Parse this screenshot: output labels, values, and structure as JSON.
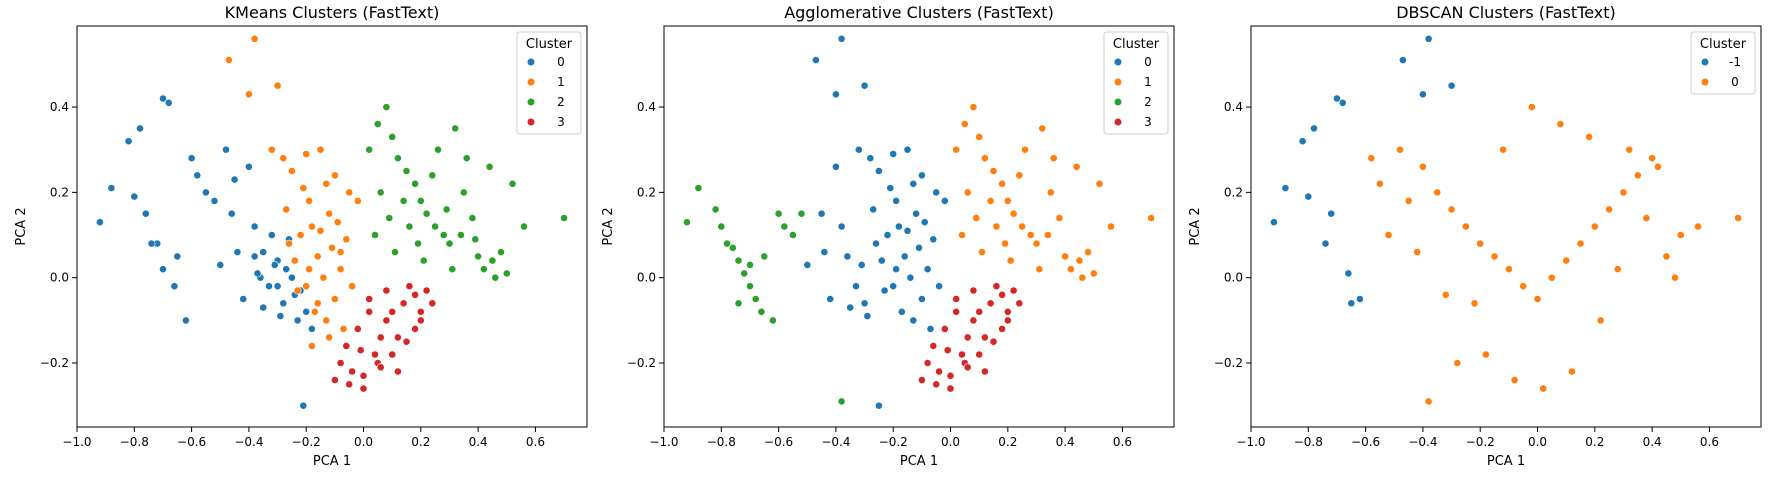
{
  "figure": {
    "background": "#ffffff"
  },
  "colors": {
    "blue": "#1f77b4",
    "orange": "#ff7f0e",
    "green": "#2ca02c",
    "red": "#d62728"
  },
  "chart_data": [
    {
      "type": "scatter",
      "title": "KMeans Clusters (FastText)",
      "xlabel": "PCA 1",
      "ylabel": "PCA 2",
      "xlim": [
        -1.0,
        0.78
      ],
      "ylim": [
        -0.35,
        0.59
      ],
      "xticks": [
        -1.0,
        -0.8,
        -0.6,
        -0.4,
        -0.2,
        0.0,
        0.2,
        0.4,
        0.6
      ],
      "xtick_labels": [
        "−1.0",
        "−0.8",
        "−0.6",
        "−0.4",
        "−0.2",
        "0.0",
        "0.2",
        "0.4",
        "0.6"
      ],
      "yticks": [
        -0.2,
        0.0,
        0.2,
        0.4
      ],
      "ytick_labels": [
        "−0.2",
        "0.0",
        "0.2",
        "0.4"
      ],
      "grid": false,
      "legend": {
        "title": "Cluster",
        "placement": "top-right",
        "entries": [
          "0",
          "1",
          "2",
          "3"
        ]
      },
      "series": [
        {
          "name": "0",
          "color": "#1f77b4",
          "x": [
            -0.92,
            -0.88,
            -0.82,
            -0.8,
            -0.78,
            -0.7,
            -0.68,
            -0.72,
            -0.65,
            -0.6,
            -0.58,
            -0.55,
            -0.52,
            -0.48,
            -0.45,
            -0.4,
            -0.38,
            -0.35,
            -0.3,
            -0.27,
            -0.25,
            -0.22,
            -0.2,
            -0.18,
            -0.32,
            -0.36,
            -0.42,
            -0.5,
            -0.62,
            -0.66,
            -0.7,
            -0.74,
            -0.76,
            -0.46,
            -0.28,
            -0.33,
            -0.38,
            -0.24,
            -0.21,
            -0.3,
            -0.26,
            -0.35,
            -0.44,
            -0.31,
            -0.23,
            -0.29,
            -0.37
          ],
          "y": [
            0.13,
            0.21,
            0.32,
            0.19,
            0.35,
            0.42,
            0.41,
            0.08,
            0.05,
            0.28,
            0.24,
            0.2,
            0.18,
            0.3,
            0.23,
            0.26,
            0.12,
            0.06,
            0.04,
            0.02,
            0.0,
            -0.03,
            -0.08,
            -0.12,
            0.1,
            0.0,
            -0.05,
            0.03,
            -0.1,
            -0.02,
            0.02,
            0.08,
            0.15,
            0.15,
            -0.06,
            -0.02,
            0.05,
            -0.04,
            -0.3,
            -0.02,
            0.09,
            -0.07,
            0.06,
            0.03,
            -0.1,
            -0.09,
            0.01
          ]
        },
        {
          "name": "1",
          "color": "#ff7f0e",
          "x": [
            -0.47,
            -0.38,
            -0.4,
            -0.3,
            -0.32,
            -0.28,
            -0.25,
            -0.2,
            -0.15,
            -0.1,
            -0.05,
            -0.02,
            -0.12,
            -0.18,
            -0.22,
            -0.26,
            -0.16,
            -0.08,
            -0.14,
            -0.2,
            -0.24,
            -0.1,
            -0.06,
            -0.17,
            -0.13,
            -0.19,
            -0.09,
            -0.04,
            -0.21,
            -0.27,
            -0.11,
            -0.15,
            -0.07,
            -0.23,
            -0.19,
            -0.13,
            -0.16,
            -0.12,
            -0.18,
            -0.08
          ],
          "y": [
            0.51,
            0.56,
            0.43,
            0.45,
            0.3,
            0.28,
            0.25,
            0.29,
            0.3,
            0.24,
            0.2,
            0.18,
            0.15,
            0.12,
            0.1,
            0.08,
            0.05,
            0.02,
            0.0,
            -0.02,
            0.04,
            -0.05,
            0.09,
            -0.08,
            -0.1,
            0.18,
            0.13,
            -0.02,
            0.21,
            0.16,
            0.07,
            0.11,
            -0.12,
            -0.03,
            0.02,
            0.22,
            -0.06,
            -0.14,
            -0.16,
            0.06
          ]
        },
        {
          "name": "2",
          "color": "#2ca02c",
          "x": [
            0.02,
            0.05,
            0.08,
            0.1,
            0.12,
            0.15,
            0.18,
            0.2,
            0.22,
            0.25,
            0.28,
            0.3,
            0.32,
            0.35,
            0.38,
            0.4,
            0.42,
            0.45,
            0.48,
            0.5,
            0.52,
            0.7,
            0.56,
            0.44,
            0.36,
            0.26,
            0.16,
            0.06,
            0.11,
            0.21,
            0.31,
            0.14,
            0.24,
            0.34,
            0.46,
            0.04,
            0.09,
            0.19,
            0.29,
            0.39
          ],
          "y": [
            0.3,
            0.36,
            0.4,
            0.33,
            0.28,
            0.25,
            0.22,
            0.18,
            0.15,
            0.12,
            0.1,
            0.08,
            0.35,
            0.2,
            0.14,
            0.05,
            0.02,
            0.04,
            0.06,
            0.01,
            0.22,
            0.14,
            0.12,
            0.26,
            0.28,
            0.3,
            0.12,
            0.2,
            0.06,
            0.04,
            0.02,
            0.18,
            0.24,
            0.1,
            0.0,
            0.1,
            0.14,
            0.08,
            0.16,
            0.09
          ]
        },
        {
          "name": "3",
          "color": "#d62728",
          "x": [
            -0.1,
            -0.05,
            0.0,
            0.05,
            0.1,
            0.15,
            0.18,
            0.2,
            0.22,
            0.12,
            0.08,
            0.02,
            -0.02,
            -0.06,
            0.14,
            0.16,
            0.06,
            -0.08,
            0.1,
            0.04,
            0.0,
            -0.04,
            0.12,
            0.18,
            0.24,
            0.2,
            0.08,
            0.02,
            -0.01,
            0.06
          ],
          "y": [
            -0.24,
            -0.25,
            -0.23,
            -0.2,
            -0.18,
            -0.15,
            -0.12,
            -0.08,
            -0.03,
            -0.22,
            -0.1,
            -0.05,
            -0.12,
            -0.16,
            -0.06,
            -0.02,
            -0.14,
            -0.2,
            -0.08,
            -0.18,
            -0.26,
            -0.22,
            -0.14,
            -0.04,
            -0.06,
            -0.1,
            -0.03,
            -0.08,
            -0.17,
            -0.21
          ]
        }
      ]
    },
    {
      "type": "scatter",
      "title": "Agglomerative Clusters (FastText)",
      "xlabel": "PCA 1",
      "ylabel": "PCA 2",
      "xlim": [
        -1.0,
        0.78
      ],
      "ylim": [
        -0.35,
        0.59
      ],
      "xticks": [
        -1.0,
        -0.8,
        -0.6,
        -0.4,
        -0.2,
        0.0,
        0.2,
        0.4,
        0.6
      ],
      "xtick_labels": [
        "−1.0",
        "−0.8",
        "−0.6",
        "−0.4",
        "−0.2",
        "0.0",
        "0.2",
        "0.4",
        "0.6"
      ],
      "yticks": [
        -0.2,
        0.0,
        0.2,
        0.4
      ],
      "ytick_labels": [
        "−0.2",
        "0.0",
        "0.2",
        "0.4"
      ],
      "grid": false,
      "legend": {
        "title": "Cluster",
        "placement": "top-right",
        "entries": [
          "0",
          "1",
          "2",
          "3"
        ]
      },
      "series": [
        {
          "name": "0",
          "color": "#1f77b4",
          "x": [
            -0.47,
            -0.38,
            -0.4,
            -0.3,
            -0.32,
            -0.28,
            -0.25,
            -0.2,
            -0.15,
            -0.1,
            -0.05,
            -0.02,
            -0.12,
            -0.18,
            -0.22,
            -0.26,
            -0.16,
            -0.08,
            -0.14,
            -0.2,
            -0.24,
            -0.1,
            -0.06,
            -0.17,
            -0.13,
            -0.19,
            -0.09,
            -0.04,
            -0.21,
            -0.27,
            -0.11,
            -0.15,
            -0.07,
            -0.23,
            -0.19,
            -0.13,
            -0.44,
            -0.36,
            -0.33,
            -0.31,
            -0.29,
            -0.35,
            -0.42,
            -0.5,
            -0.38,
            -0.45,
            -0.4,
            -0.3,
            -0.25
          ],
          "y": [
            0.51,
            0.56,
            0.43,
            0.45,
            0.3,
            0.28,
            0.25,
            0.29,
            0.3,
            0.24,
            0.2,
            0.18,
            0.15,
            0.12,
            0.1,
            0.08,
            0.05,
            0.02,
            0.0,
            -0.02,
            0.04,
            -0.05,
            0.09,
            -0.08,
            -0.1,
            0.18,
            0.13,
            -0.02,
            0.21,
            0.16,
            0.07,
            0.11,
            -0.12,
            -0.03,
            0.02,
            0.22,
            0.06,
            0.05,
            -0.02,
            0.03,
            -0.09,
            -0.07,
            -0.05,
            0.03,
            0.12,
            0.15,
            0.26,
            -0.06,
            -0.3
          ]
        },
        {
          "name": "1",
          "color": "#ff7f0e",
          "x": [
            0.02,
            0.05,
            0.08,
            0.1,
            0.12,
            0.15,
            0.18,
            0.2,
            0.22,
            0.25,
            0.28,
            0.3,
            0.32,
            0.35,
            0.38,
            0.4,
            0.42,
            0.45,
            0.48,
            0.5,
            0.52,
            0.7,
            0.56,
            0.44,
            0.36,
            0.26,
            0.16,
            0.06,
            0.11,
            0.21,
            0.31,
            0.14,
            0.24,
            0.34,
            0.46,
            0.04,
            0.09,
            0.19
          ],
          "y": [
            0.3,
            0.36,
            0.4,
            0.33,
            0.28,
            0.25,
            0.22,
            0.18,
            0.15,
            0.12,
            0.1,
            0.08,
            0.35,
            0.2,
            0.14,
            0.05,
            0.02,
            0.04,
            0.06,
            0.01,
            0.22,
            0.14,
            0.12,
            0.26,
            0.28,
            0.3,
            0.12,
            0.2,
            0.06,
            0.04,
            0.02,
            0.18,
            0.24,
            0.1,
            0.0,
            0.1,
            0.14,
            0.08
          ]
        },
        {
          "name": "2",
          "color": "#2ca02c",
          "x": [
            -0.92,
            -0.88,
            -0.82,
            -0.8,
            -0.78,
            -0.76,
            -0.74,
            -0.72,
            -0.7,
            -0.68,
            -0.66,
            -0.65,
            -0.62,
            -0.6,
            -0.58,
            -0.55,
            -0.52,
            -0.38,
            -0.7,
            -0.74
          ],
          "y": [
            0.13,
            0.21,
            0.16,
            0.12,
            0.08,
            0.07,
            0.04,
            0.01,
            -0.02,
            -0.05,
            -0.08,
            0.05,
            -0.1,
            0.15,
            0.12,
            0.1,
            0.15,
            -0.29,
            0.03,
            -0.06
          ]
        },
        {
          "name": "3",
          "color": "#d62728",
          "x": [
            -0.1,
            -0.05,
            0.0,
            0.05,
            0.1,
            0.15,
            0.18,
            0.2,
            0.22,
            0.12,
            0.08,
            0.02,
            -0.02,
            -0.06,
            0.14,
            0.16,
            0.06,
            -0.08,
            0.1,
            0.04,
            0.0,
            -0.04,
            0.12,
            0.18,
            0.24,
            0.2,
            0.08,
            0.02,
            -0.01,
            0.06
          ],
          "y": [
            -0.24,
            -0.25,
            -0.23,
            -0.2,
            -0.18,
            -0.15,
            -0.12,
            -0.08,
            -0.03,
            -0.22,
            -0.1,
            -0.05,
            -0.12,
            -0.16,
            -0.06,
            -0.02,
            -0.14,
            -0.2,
            -0.08,
            -0.18,
            -0.26,
            -0.22,
            -0.14,
            -0.04,
            -0.06,
            -0.1,
            -0.03,
            -0.08,
            -0.17,
            -0.21
          ]
        }
      ]
    },
    {
      "type": "scatter",
      "title": "DBSCAN Clusters (FastText)",
      "xlabel": "PCA 1",
      "ylabel": "PCA 2",
      "xlim": [
        -1.0,
        0.78
      ],
      "ylim": [
        -0.35,
        0.59
      ],
      "xticks": [
        -1.0,
        -0.8,
        -0.6,
        -0.4,
        -0.2,
        0.0,
        0.2,
        0.4,
        0.6
      ],
      "xtick_labels": [
        "−1.0",
        "−0.8",
        "−0.6",
        "−0.4",
        "−0.2",
        "0.0",
        "0.2",
        "0.4",
        "0.6"
      ],
      "yticks": [
        -0.2,
        0.0,
        0.2,
        0.4
      ],
      "ytick_labels": [
        "−0.2",
        "0.0",
        "0.2",
        "0.4"
      ],
      "grid": false,
      "legend": {
        "title": "Cluster",
        "placement": "top-right",
        "entries": [
          "-1",
          "0"
        ]
      },
      "series": [
        {
          "name": "-1",
          "color": "#1f77b4",
          "x": [
            -0.92,
            -0.88,
            -0.82,
            -0.8,
            -0.78,
            -0.74,
            -0.7,
            -0.68,
            -0.66,
            -0.72,
            -0.65,
            -0.47,
            -0.38,
            -0.3,
            -0.4,
            -0.62
          ],
          "y": [
            0.13,
            0.21,
            0.32,
            0.19,
            0.35,
            0.08,
            0.42,
            0.41,
            0.01,
            0.15,
            -0.06,
            0.51,
            0.56,
            0.45,
            0.43,
            -0.05
          ]
        },
        {
          "name": "0",
          "color": "#ff7f0e",
          "x": [
            -0.58,
            -0.55,
            -0.52,
            -0.48,
            -0.45,
            -0.4,
            -0.35,
            -0.3,
            -0.25,
            -0.2,
            -0.15,
            -0.1,
            -0.05,
            0.0,
            0.05,
            0.1,
            0.15,
            0.2,
            0.25,
            0.3,
            0.35,
            0.4,
            0.45,
            0.5,
            0.56,
            0.7,
            -0.38,
            -0.28,
            -0.18,
            -0.08,
            0.02,
            0.12,
            0.22,
            0.32,
            0.42,
            -0.12,
            0.08,
            -0.02,
            0.18,
            -0.22,
            0.28,
            -0.32,
            0.38,
            -0.42,
            0.48
          ],
          "y": [
            0.28,
            0.22,
            0.1,
            0.3,
            0.18,
            0.26,
            0.2,
            0.16,
            0.12,
            0.08,
            0.05,
            0.02,
            -0.02,
            -0.05,
            0.0,
            0.04,
            0.08,
            0.12,
            0.16,
            0.2,
            0.24,
            0.28,
            0.05,
            0.1,
            0.12,
            0.14,
            -0.29,
            -0.2,
            -0.18,
            -0.24,
            -0.26,
            -0.22,
            -0.1,
            0.3,
            0.26,
            0.3,
            0.36,
            0.4,
            0.33,
            -0.06,
            0.02,
            -0.04,
            0.14,
            0.06,
            0.0
          ]
        }
      ]
    }
  ]
}
